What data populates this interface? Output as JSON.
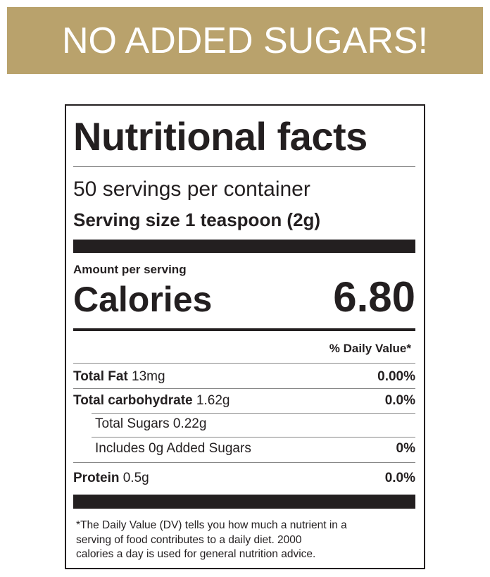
{
  "banner": {
    "title": "NO ADDED SUGARS!"
  },
  "label": {
    "title": "Nutritional facts",
    "servings": "50 servings per container",
    "serving_size": "Serving size 1 teaspoon (2g)",
    "amount_per_serving": "Amount per serving",
    "calories_label": "Calories",
    "calories_value": "6.80",
    "daily_value_header": "% Daily Value*",
    "rows": [
      {
        "name": "Total Fat",
        "amount": "13mg",
        "dv": "0.00%"
      },
      {
        "name": "Total carbohydrate",
        "amount": "1.62g",
        "dv": "0.0%"
      },
      {
        "text": "Total Sugars 0.22g"
      },
      {
        "text": "Includes 0g Added Sugars",
        "dv": "0%"
      },
      {
        "name": "Protein",
        "amount": "0.5g",
        "dv": "0.0%"
      }
    ],
    "footnote": [
      "*The Daily Value (DV) tells you how much a nutrient in a",
      "serving of food contributes to a daily diet. 2000",
      "calories a day is used for general nutrition advice."
    ]
  }
}
